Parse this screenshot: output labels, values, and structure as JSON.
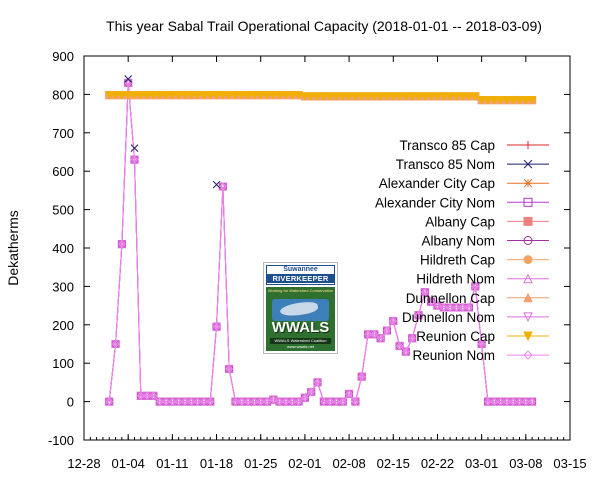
{
  "chart_data": {
    "type": "line",
    "title": "This year Sabal Trail Operational Capacity (2018-01-01 -- 2018-03-09)",
    "ylabel": "Dekatherms",
    "xlabel": "",
    "x_range": [
      "2017-12-28",
      "2018-03-15"
    ],
    "ylim": [
      -100,
      900
    ],
    "x_ticks": [
      "12-28",
      "01-04",
      "01-11",
      "01-18",
      "01-25",
      "02-01",
      "02-08",
      "02-15",
      "02-22",
      "03-01",
      "03-08",
      "03-15"
    ],
    "y_ticks": [
      "-100",
      "0",
      "100",
      "200",
      "300",
      "400",
      "500",
      "600",
      "700",
      "800",
      "900"
    ],
    "grid": false,
    "legend_position": "right",
    "series": [
      {
        "name": "Transco 85 Cap",
        "color": "#d62728",
        "marker": "plus",
        "role": "cap"
      },
      {
        "name": "Transco 85 Nom",
        "color": "#1f1f6e",
        "marker": "cross",
        "role": "transco_nom"
      },
      {
        "name": "Alexander City Cap",
        "color": "#e8702a",
        "marker": "star",
        "role": "cap"
      },
      {
        "name": "Alexander City Nom",
        "color": "#b03ad6",
        "marker": "square-open",
        "role": "nom"
      },
      {
        "name": "Albany Cap",
        "color": "#f08080",
        "marker": "square-filled",
        "role": "cap"
      },
      {
        "name": "Albany Nom",
        "color": "#a0309a",
        "marker": "circle-open",
        "role": "nom"
      },
      {
        "name": "Hildreth Cap",
        "color": "#f4a460",
        "marker": "circle-filled",
        "role": "cap"
      },
      {
        "name": "Hildreth Nom",
        "color": "#da70d6",
        "marker": "triangle-open",
        "role": "nom"
      },
      {
        "name": "Dunnellon Cap",
        "color": "#f4a070",
        "marker": "triangle-filled",
        "role": "cap"
      },
      {
        "name": "Dunnellon Nom",
        "color": "#da70d6",
        "marker": "triangle-down-open",
        "role": "nom"
      },
      {
        "name": "Reunion Cap",
        "color": "#f0b000",
        "marker": "triangle-down-filled",
        "role": "cap"
      },
      {
        "name": "Reunion Nom",
        "color": "#ee82ee",
        "marker": "diamond-open",
        "role": "nom"
      }
    ],
    "cap_values": {
      "x": [
        "2018-01-01",
        "2018-01-02",
        "2018-01-03",
        "2018-01-04",
        "2018-01-05",
        "2018-01-06",
        "2018-01-07",
        "2018-01-08",
        "2018-01-09",
        "2018-01-10",
        "2018-01-11",
        "2018-01-12",
        "2018-01-13",
        "2018-01-14",
        "2018-01-15",
        "2018-01-16",
        "2018-01-17",
        "2018-01-18",
        "2018-01-19",
        "2018-01-20",
        "2018-01-21",
        "2018-01-22",
        "2018-01-23",
        "2018-01-24",
        "2018-01-25",
        "2018-01-26",
        "2018-01-27",
        "2018-01-28",
        "2018-01-29",
        "2018-01-30",
        "2018-01-31",
        "2018-02-01",
        "2018-02-02",
        "2018-02-03",
        "2018-02-04",
        "2018-02-05",
        "2018-02-06",
        "2018-02-07",
        "2018-02-08",
        "2018-02-09",
        "2018-02-10",
        "2018-02-11",
        "2018-02-12",
        "2018-02-13",
        "2018-02-14",
        "2018-02-15",
        "2018-02-16",
        "2018-02-17",
        "2018-02-18",
        "2018-02-19",
        "2018-02-20",
        "2018-02-21",
        "2018-02-22",
        "2018-02-23",
        "2018-02-24",
        "2018-02-25",
        "2018-02-26",
        "2018-02-27",
        "2018-02-28",
        "2018-03-01",
        "2018-03-02",
        "2018-03-03",
        "2018-03-04",
        "2018-03-05",
        "2018-03-06",
        "2018-03-07",
        "2018-03-08",
        "2018-03-09"
      ],
      "y": [
        798,
        798,
        798,
        798,
        798,
        798,
        798,
        798,
        798,
        798,
        798,
        798,
        798,
        798,
        798,
        798,
        798,
        798,
        798,
        798,
        798,
        798,
        798,
        798,
        798,
        798,
        798,
        798,
        798,
        798,
        798,
        795,
        795,
        795,
        795,
        795,
        795,
        795,
        795,
        795,
        795,
        795,
        795,
        795,
        795,
        795,
        795,
        795,
        795,
        795,
        795,
        795,
        795,
        795,
        795,
        795,
        795,
        795,
        795,
        785,
        785,
        785,
        785,
        785,
        785,
        785,
        785,
        785
      ]
    },
    "nom_values": {
      "x": [
        "2018-01-01",
        "2018-01-02",
        "2018-01-03",
        "2018-01-04",
        "2018-01-05",
        "2018-01-06",
        "2018-01-07",
        "2018-01-08",
        "2018-01-09",
        "2018-01-10",
        "2018-01-11",
        "2018-01-12",
        "2018-01-13",
        "2018-01-14",
        "2018-01-15",
        "2018-01-16",
        "2018-01-17",
        "2018-01-18",
        "2018-01-19",
        "2018-01-20",
        "2018-01-21",
        "2018-01-22",
        "2018-01-23",
        "2018-01-24",
        "2018-01-25",
        "2018-01-26",
        "2018-01-27",
        "2018-01-28",
        "2018-01-29",
        "2018-01-30",
        "2018-01-31",
        "2018-02-01",
        "2018-02-02",
        "2018-02-03",
        "2018-02-04",
        "2018-02-05",
        "2018-02-06",
        "2018-02-07",
        "2018-02-08",
        "2018-02-09",
        "2018-02-10",
        "2018-02-11",
        "2018-02-12",
        "2018-02-13",
        "2018-02-14",
        "2018-02-15",
        "2018-02-16",
        "2018-02-17",
        "2018-02-18",
        "2018-02-19",
        "2018-02-20",
        "2018-02-21",
        "2018-02-22",
        "2018-02-23",
        "2018-02-24",
        "2018-02-25",
        "2018-02-26",
        "2018-02-27",
        "2018-02-28",
        "2018-03-01",
        "2018-03-02",
        "2018-03-03",
        "2018-03-04",
        "2018-03-05",
        "2018-03-06",
        "2018-03-07",
        "2018-03-08",
        "2018-03-09"
      ],
      "y": [
        0,
        150,
        410,
        830,
        630,
        15,
        15,
        15,
        0,
        0,
        0,
        0,
        0,
        0,
        0,
        0,
        0,
        195,
        560,
        85,
        0,
        0,
        0,
        0,
        0,
        0,
        5,
        0,
        0,
        0,
        0,
        10,
        25,
        50,
        0,
        0,
        0,
        0,
        20,
        0,
        65,
        175,
        175,
        165,
        185,
        210,
        145,
        130,
        165,
        225,
        285,
        260,
        250,
        245,
        245,
        245,
        245,
        245,
        300,
        150,
        0,
        0,
        0,
        0,
        0,
        0,
        0,
        0
      ]
    },
    "transco_nom_values": {
      "x": [
        "2018-01-04",
        "2018-01-05",
        "2018-01-18"
      ],
      "y": [
        840,
        660,
        565
      ]
    }
  },
  "logo": {
    "line1": "Suwannee",
    "line2": "RIVERKEEPER",
    "tagline": "Working for Watershed Conservation",
    "wordmark": "WWALS",
    "bar": "WWALS Watershed Coalition",
    "url": "www.wwals.net"
  }
}
